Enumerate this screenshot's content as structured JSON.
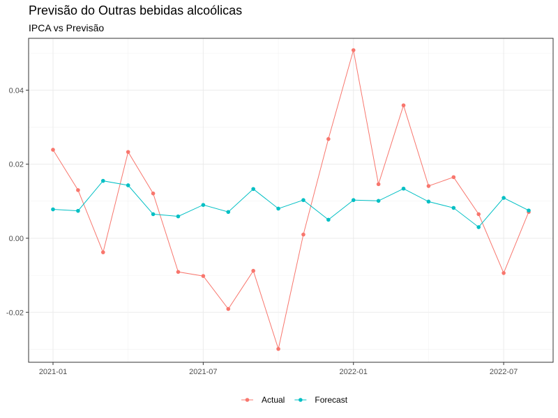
{
  "chart_data": {
    "type": "line",
    "title": "Previsão do Outras bebidas alcoólicas",
    "subtitle": "IPCA vs Previsão",
    "xlabel": "",
    "ylabel": "",
    "x": [
      "2021-01",
      "2021-02",
      "2021-03",
      "2021-04",
      "2021-05",
      "2021-06",
      "2021-07",
      "2021-08",
      "2021-09",
      "2021-10",
      "2021-11",
      "2021-12",
      "2022-01",
      "2022-02",
      "2022-03",
      "2022-04",
      "2022-05",
      "2022-06",
      "2022-07",
      "2022-08"
    ],
    "x_ticks": [
      "2021-01",
      "2021-07",
      "2022-01",
      "2022-07"
    ],
    "y_ticks": [
      "-0.02",
      "0.00",
      "0.02",
      "0.04"
    ],
    "y_tick_values": [
      -0.02,
      0.0,
      0.02,
      0.04
    ],
    "ylim": [
      -0.0335,
      0.054
    ],
    "grid": true,
    "legend_position": "bottom",
    "series": [
      {
        "name": "Actual",
        "color": "#f8766d",
        "values": [
          0.0239,
          0.013,
          -0.0038,
          0.0233,
          0.0121,
          -0.0091,
          -0.0102,
          -0.0191,
          -0.0088,
          -0.0299,
          0.001,
          0.0268,
          0.0508,
          0.0146,
          0.0359,
          0.0141,
          0.0165,
          0.0065,
          -0.0094,
          0.0071
        ]
      },
      {
        "name": "Forecast",
        "color": "#00bfc4",
        "values": [
          0.0078,
          0.0074,
          0.0155,
          0.0143,
          0.0065,
          0.0059,
          0.009,
          0.0071,
          0.0133,
          0.008,
          0.0103,
          0.005,
          0.0103,
          0.0101,
          0.0134,
          0.0099,
          0.0082,
          0.003,
          0.0109,
          0.0075
        ]
      }
    ]
  }
}
